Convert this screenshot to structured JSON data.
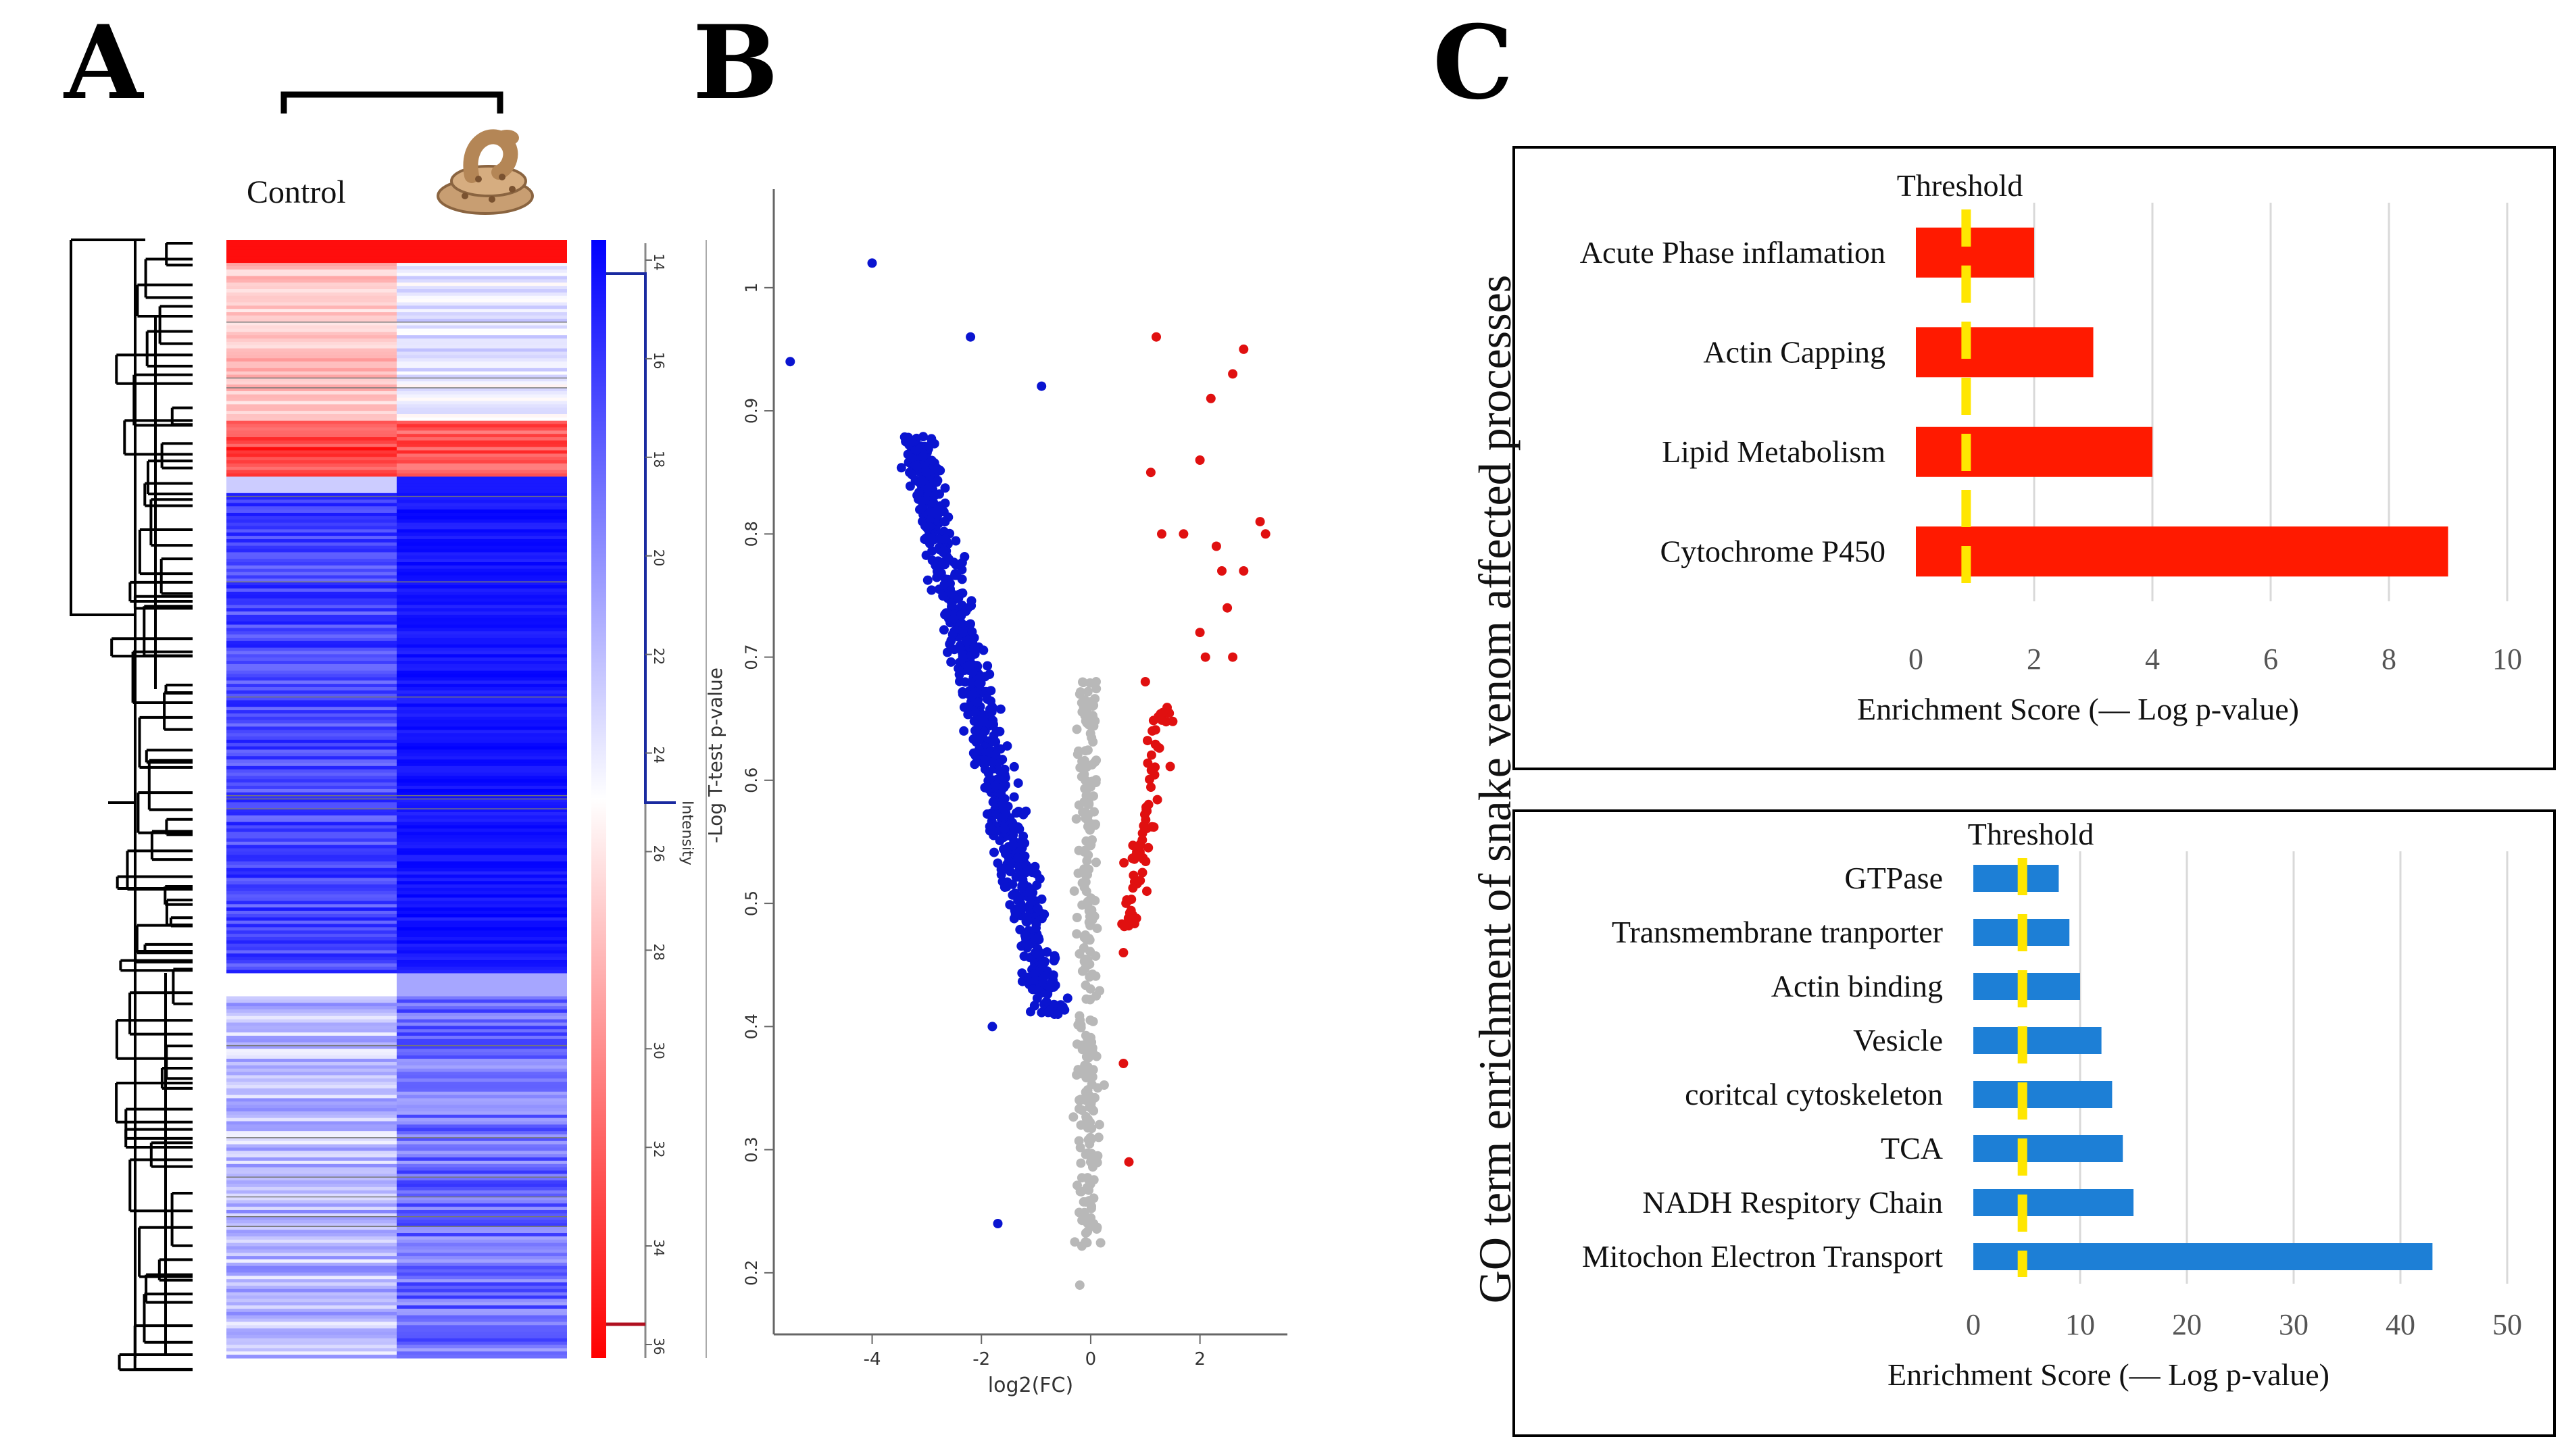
{
  "panels": {
    "a": "A",
    "b": "B",
    "c": "C"
  },
  "panel_a": {
    "group_control": "Control",
    "group_venom_icon": "snake-icon",
    "colorbar_label": "Intensity",
    "colorbar_ticks": [
      "14",
      "16",
      "18",
      "20",
      "22",
      "24",
      "26",
      "28",
      "30",
      "32",
      "34",
      "36"
    ],
    "color_high": "#ff0000",
    "color_low": "#0000ff"
  },
  "chart_data": [
    {
      "type": "scatter",
      "title": "",
      "xlabel": "log2(FC)",
      "ylabel": "-Log T-test p-value",
      "xlim": [
        -5.8,
        3.6
      ],
      "ylim": [
        0.15,
        1.08
      ],
      "xticks": [
        -4,
        -2,
        0,
        2
      ],
      "yticks": [
        0.2,
        0.3,
        0.4,
        0.5,
        0.6,
        0.7,
        0.8,
        0.9,
        1
      ],
      "series": [
        {
          "name": "down",
          "color": "#0a14d0"
        },
        {
          "name": "ns",
          "color": "#b8b8b8"
        },
        {
          "name": "up",
          "color": "#e01010"
        }
      ],
      "highlight_points": {
        "down": [
          [
            -4.0,
            1.02
          ],
          [
            -5.5,
            0.94
          ],
          [
            -2.2,
            0.96
          ],
          [
            -0.9,
            0.92
          ],
          [
            -1.0,
            0.46
          ],
          [
            -1.8,
            0.4
          ],
          [
            -1.7,
            0.24
          ],
          [
            -0.6,
            0.41
          ],
          [
            -3.0,
            0.85
          ]
        ],
        "up": [
          [
            1.2,
            0.96
          ],
          [
            2.8,
            0.95
          ],
          [
            2.6,
            0.93
          ],
          [
            2.2,
            0.91
          ],
          [
            1.1,
            0.85
          ],
          [
            2.0,
            0.86
          ],
          [
            3.1,
            0.81
          ],
          [
            3.2,
            0.8
          ],
          [
            1.3,
            0.8
          ],
          [
            1.7,
            0.8
          ],
          [
            2.4,
            0.77
          ],
          [
            2.8,
            0.77
          ],
          [
            2.3,
            0.79
          ],
          [
            2.5,
            0.74
          ],
          [
            2.6,
            0.7
          ],
          [
            1.0,
            0.68
          ],
          [
            2.0,
            0.72
          ],
          [
            2.1,
            0.7
          ],
          [
            0.6,
            0.46
          ],
          [
            0.6,
            0.37
          ],
          [
            0.7,
            0.29
          ]
        ],
        "ns": [
          [
            -0.2,
            0.19
          ],
          [
            0.0,
            0.29
          ],
          [
            -0.3,
            0.51
          ],
          [
            -0.1,
            0.6
          ],
          [
            0.1,
            0.68
          ],
          [
            -0.2,
            0.67
          ]
        ]
      }
    },
    {
      "type": "bar",
      "orientation": "horizontal",
      "title": "",
      "xlabel": "Enrichment Score (— Log p-value)",
      "ylabel": "",
      "xlim": [
        0,
        10
      ],
      "xticks": [
        0,
        2,
        4,
        6,
        8,
        10
      ],
      "categories": [
        "Acute Phase inflamation",
        "Actin Capping",
        "Lipid Metabolism",
        "Cytochrome P450"
      ],
      "values": [
        2,
        3,
        4,
        9
      ],
      "threshold": 0.85,
      "threshold_label": "Threshold",
      "bar_color": "#ff1a00",
      "threshold_color": "#ffe600"
    },
    {
      "type": "bar",
      "orientation": "horizontal",
      "title": "",
      "xlabel": "Enrichment Score (— Log p-value)",
      "ylabel": "",
      "xlim": [
        0,
        50
      ],
      "xticks": [
        0,
        10,
        20,
        30,
        40,
        50
      ],
      "categories": [
        "GTPase",
        "Transmembrane tranporter",
        "Actin binding",
        "Vesicle",
        "coritcal cytoskeleton",
        "TCA",
        "NADH Respitory Chain",
        "Mitochon Electron Transport"
      ],
      "values": [
        8,
        9,
        10,
        12,
        13,
        14,
        15,
        43
      ],
      "threshold": 4.6,
      "threshold_label": "Threshold",
      "bar_color": "#1d7fd6",
      "threshold_color": "#ffe600"
    }
  ],
  "panel_c": {
    "shared_ylabel": "GO term enrichment of snake venom affected processes"
  }
}
